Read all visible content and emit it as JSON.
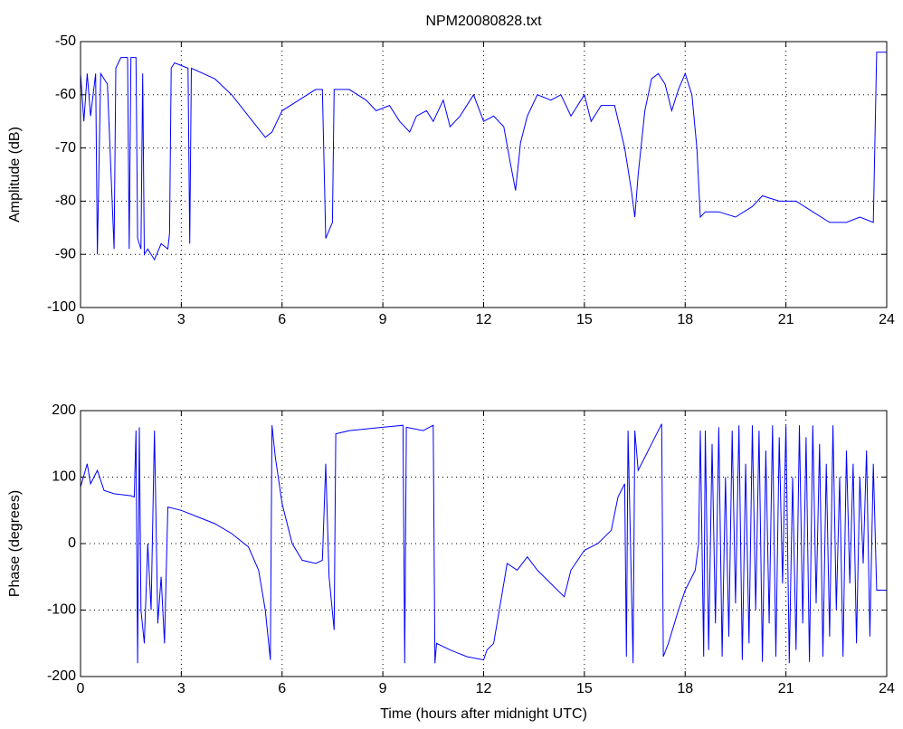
{
  "chart_data": [
    {
      "type": "line",
      "title": "NPM20080828.txt",
      "y_label": "Amplitude (dB)",
      "color": "#0000ff",
      "grid": true,
      "xlim": [
        0,
        24
      ],
      "xticks": [
        0,
        3,
        6,
        9,
        12,
        15,
        18,
        21,
        24
      ],
      "ylim": [
        -100,
        -50
      ],
      "yticks": [
        -100,
        -90,
        -80,
        -70,
        -60,
        -50
      ],
      "x": [
        0,
        0.1,
        0.2,
        0.3,
        0.45,
        0.5,
        0.6,
        0.8,
        1.0,
        1.05,
        1.2,
        1.4,
        1.45,
        1.5,
        1.65,
        1.7,
        1.8,
        1.85,
        1.9,
        2.0,
        2.2,
        2.4,
        2.6,
        2.65,
        2.7,
        2.8,
        3.2,
        3.25,
        3.3,
        4.0,
        4.5,
        5.0,
        5.5,
        5.7,
        6.0,
        6.5,
        7.0,
        7.2,
        7.3,
        7.5,
        7.55,
        8.0,
        8.5,
        8.8,
        9.2,
        9.5,
        9.8,
        10.0,
        10.3,
        10.5,
        10.8,
        11.0,
        11.3,
        11.7,
        12.0,
        12.3,
        12.6,
        12.8,
        12.95,
        13.1,
        13.3,
        13.6,
        14.0,
        14.3,
        14.6,
        15.0,
        15.2,
        15.5,
        15.9,
        16.2,
        16.4,
        16.5,
        16.6,
        16.8,
        17.0,
        17.2,
        17.4,
        17.6,
        17.8,
        18.0,
        18.2,
        18.35,
        18.45,
        18.6,
        19.0,
        19.5,
        20.0,
        20.3,
        20.8,
        21.3,
        21.8,
        22.3,
        22.8,
        23.2,
        23.6,
        23.7,
        24
      ],
      "values": [
        -56,
        -65,
        -56,
        -64,
        -56,
        -90,
        -56,
        -58,
        -89,
        -55,
        -53,
        -53,
        -89,
        -53,
        -53,
        -87,
        -89,
        -56,
        -90,
        -89,
        -91,
        -88,
        -89,
        -86,
        -55,
        -54,
        -55,
        -88,
        -55,
        -57,
        -60,
        -64,
        -68,
        -67,
        -63,
        -61,
        -59,
        -59,
        -87,
        -84,
        -59,
        -59,
        -61,
        -63,
        -62,
        -65,
        -67,
        -64,
        -63,
        -65,
        -61,
        -66,
        -64,
        -60,
        -65,
        -64,
        -66,
        -73,
        -78,
        -69,
        -64,
        -60,
        -61,
        -60,
        -64,
        -60,
        -65,
        -62,
        -62,
        -70,
        -78,
        -83,
        -75,
        -63,
        -57,
        -56,
        -58,
        -63,
        -59,
        -56,
        -60,
        -70,
        -83,
        -82,
        -82,
        -83,
        -81,
        -79,
        -80,
        -80,
        -82,
        -84,
        -84,
        -83,
        -84,
        -52,
        -52
      ]
    },
    {
      "type": "line",
      "x_label": "Time (hours after midnight UTC)",
      "y_label": "Phase (degrees)",
      "color": "#0000ff",
      "grid": true,
      "xlim": [
        0,
        24
      ],
      "xticks": [
        0,
        3,
        6,
        9,
        12,
        15,
        18,
        21,
        24
      ],
      "ylim": [
        -200,
        200
      ],
      "yticks": [
        -200,
        -100,
        0,
        100,
        200
      ],
      "x": [
        0,
        0.2,
        0.3,
        0.5,
        0.7,
        1.0,
        1.5,
        1.6,
        1.65,
        1.7,
        1.75,
        1.8,
        1.9,
        2.0,
        2.1,
        2.2,
        2.3,
        2.4,
        2.5,
        2.6,
        3.0,
        3.5,
        4.0,
        4.5,
        5.0,
        5.3,
        5.5,
        5.65,
        5.7,
        5.8,
        6.0,
        6.3,
        6.6,
        7.0,
        7.2,
        7.3,
        7.4,
        7.55,
        7.6,
        8.0,
        9.0,
        9.6,
        9.65,
        9.7,
        10.2,
        10.5,
        10.55,
        10.6,
        11.0,
        11.5,
        12.0,
        12.1,
        12.3,
        12.5,
        12.7,
        13.0,
        13.3,
        13.6,
        14.0,
        14.4,
        14.6,
        15.0,
        15.4,
        15.8,
        16.0,
        16.2,
        16.25,
        16.3,
        16.45,
        16.5,
        16.6,
        16.8,
        17.0,
        17.3,
        17.35,
        17.5,
        17.8,
        18.0,
        18.3,
        18.4,
        18.45,
        18.55,
        18.6,
        18.7,
        18.8,
        18.9,
        19.0,
        19.1,
        19.2,
        19.3,
        19.4,
        19.5,
        19.6,
        19.7,
        19.8,
        19.9,
        20.0,
        20.1,
        20.2,
        20.3,
        20.4,
        20.5,
        20.6,
        20.7,
        20.8,
        20.9,
        21.0,
        21.1,
        21.2,
        21.3,
        21.4,
        21.5,
        21.6,
        21.7,
        21.8,
        21.9,
        22.0,
        22.1,
        22.2,
        22.3,
        22.4,
        22.5,
        22.6,
        22.7,
        22.8,
        22.9,
        23.0,
        23.1,
        23.2,
        23.3,
        23.4,
        23.5,
        23.6,
        23.7,
        24
      ],
      "values": [
        85,
        120,
        90,
        110,
        80,
        75,
        72,
        70,
        170,
        -180,
        175,
        -100,
        -150,
        0,
        -100,
        170,
        -120,
        -50,
        -150,
        55,
        50,
        40,
        30,
        15,
        -5,
        -40,
        -100,
        -175,
        178,
        130,
        60,
        0,
        -25,
        -30,
        -25,
        120,
        -50,
        -130,
        165,
        170,
        175,
        178,
        -180,
        175,
        170,
        178,
        -180,
        -150,
        -160,
        -170,
        -175,
        -160,
        -150,
        -90,
        -30,
        -40,
        -20,
        -40,
        -60,
        -80,
        -40,
        -10,
        0,
        20,
        70,
        90,
        -170,
        170,
        -180,
        170,
        110,
        130,
        150,
        180,
        -170,
        -150,
        -100,
        -70,
        -40,
        0,
        170,
        -170,
        170,
        -160,
        150,
        -120,
        175,
        -170,
        100,
        -140,
        170,
        -90,
        178,
        -175,
        120,
        -150,
        178,
        -100,
        170,
        -178,
        140,
        -120,
        178,
        -170,
        160,
        -60,
        178,
        -180,
        100,
        -160,
        178,
        -120,
        160,
        -178,
        178,
        -90,
        150,
        -170,
        120,
        -140,
        178,
        -100,
        100,
        -170,
        140,
        -60,
        120,
        -150,
        100,
        -30,
        140,
        -140,
        120,
        -70,
        -70
      ]
    }
  ]
}
